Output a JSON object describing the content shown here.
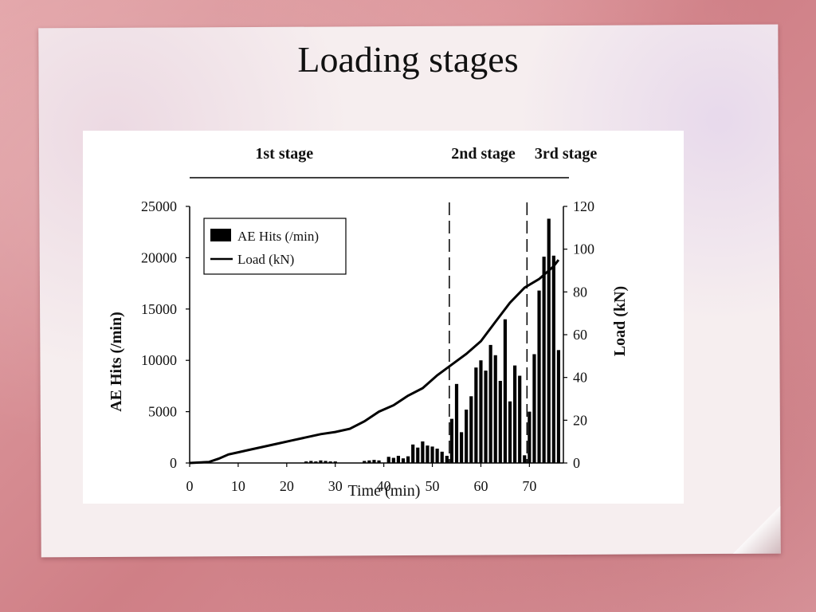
{
  "slide": {
    "title": "Loading stages",
    "background_color": "#d98f95",
    "paper_color": "#f6eeef"
  },
  "chart_data": {
    "type": "bar",
    "xlabel": "Time (min)",
    "ylabel": "AE Hits (/min)",
    "y2label": "Load (kN)",
    "xlim": [
      0,
      77
    ],
    "ylim": [
      0,
      25000
    ],
    "y2lim": [
      0,
      120
    ],
    "xticks": [
      0,
      10,
      20,
      30,
      40,
      50,
      60,
      70
    ],
    "yticks": [
      0,
      5000,
      10000,
      15000,
      20000,
      25000
    ],
    "y2ticks": [
      0,
      20,
      40,
      60,
      80,
      100,
      120
    ],
    "legend": {
      "position": "top-left",
      "entries": [
        "AE Hits (/min)",
        "Load (kN)"
      ]
    },
    "stages": [
      {
        "label": "1st stage",
        "center": 19.5
      },
      {
        "label": "2nd stage",
        "center": 60.5
      },
      {
        "label": "3rd stage",
        "center": 77.5
      }
    ],
    "stage_boundaries": [
      53.5,
      69.5
    ],
    "series": [
      {
        "name": "AE Hits (/min)",
        "type": "bar",
        "axis": "left",
        "color": "#000000",
        "x": [
          24,
          25,
          26,
          27,
          28,
          29,
          30,
          36,
          37,
          38,
          39,
          41,
          42,
          43,
          44,
          45,
          46,
          47,
          48,
          49,
          50,
          51,
          52,
          53,
          54,
          55,
          56,
          57,
          58,
          59,
          60,
          61,
          62,
          63,
          64,
          65,
          66,
          67,
          68,
          69,
          70,
          71,
          72,
          73,
          74,
          75,
          76
        ],
        "values": [
          150,
          200,
          150,
          250,
          200,
          150,
          150,
          200,
          250,
          300,
          250,
          600,
          500,
          700,
          450,
          650,
          1800,
          1500,
          2100,
          1700,
          1600,
          1400,
          1100,
          700,
          4300,
          7700,
          3000,
          5200,
          6500,
          9300,
          10000,
          9000,
          11500,
          10500,
          8000,
          14000,
          6000,
          9500,
          8500,
          750,
          5000,
          10600,
          16800,
          20100,
          23800,
          20200,
          11000
        ]
      },
      {
        "name": "Load (kN)",
        "type": "line",
        "axis": "right",
        "color": "#000000",
        "x": [
          0,
          4,
          6,
          8,
          10,
          12,
          15,
          18,
          21,
          24,
          27,
          30,
          33,
          36,
          39,
          42,
          45,
          48,
          51,
          54,
          57,
          60,
          63,
          66,
          69,
          72,
          74,
          75,
          76
        ],
        "values": [
          0,
          0.5,
          2,
          4,
          5,
          6,
          7.5,
          9,
          10.5,
          12,
          13.5,
          14.5,
          16,
          19.5,
          24,
          27,
          31.5,
          35,
          41,
          46,
          51,
          57,
          66,
          75,
          82,
          86,
          90,
          92,
          95
        ]
      }
    ]
  }
}
